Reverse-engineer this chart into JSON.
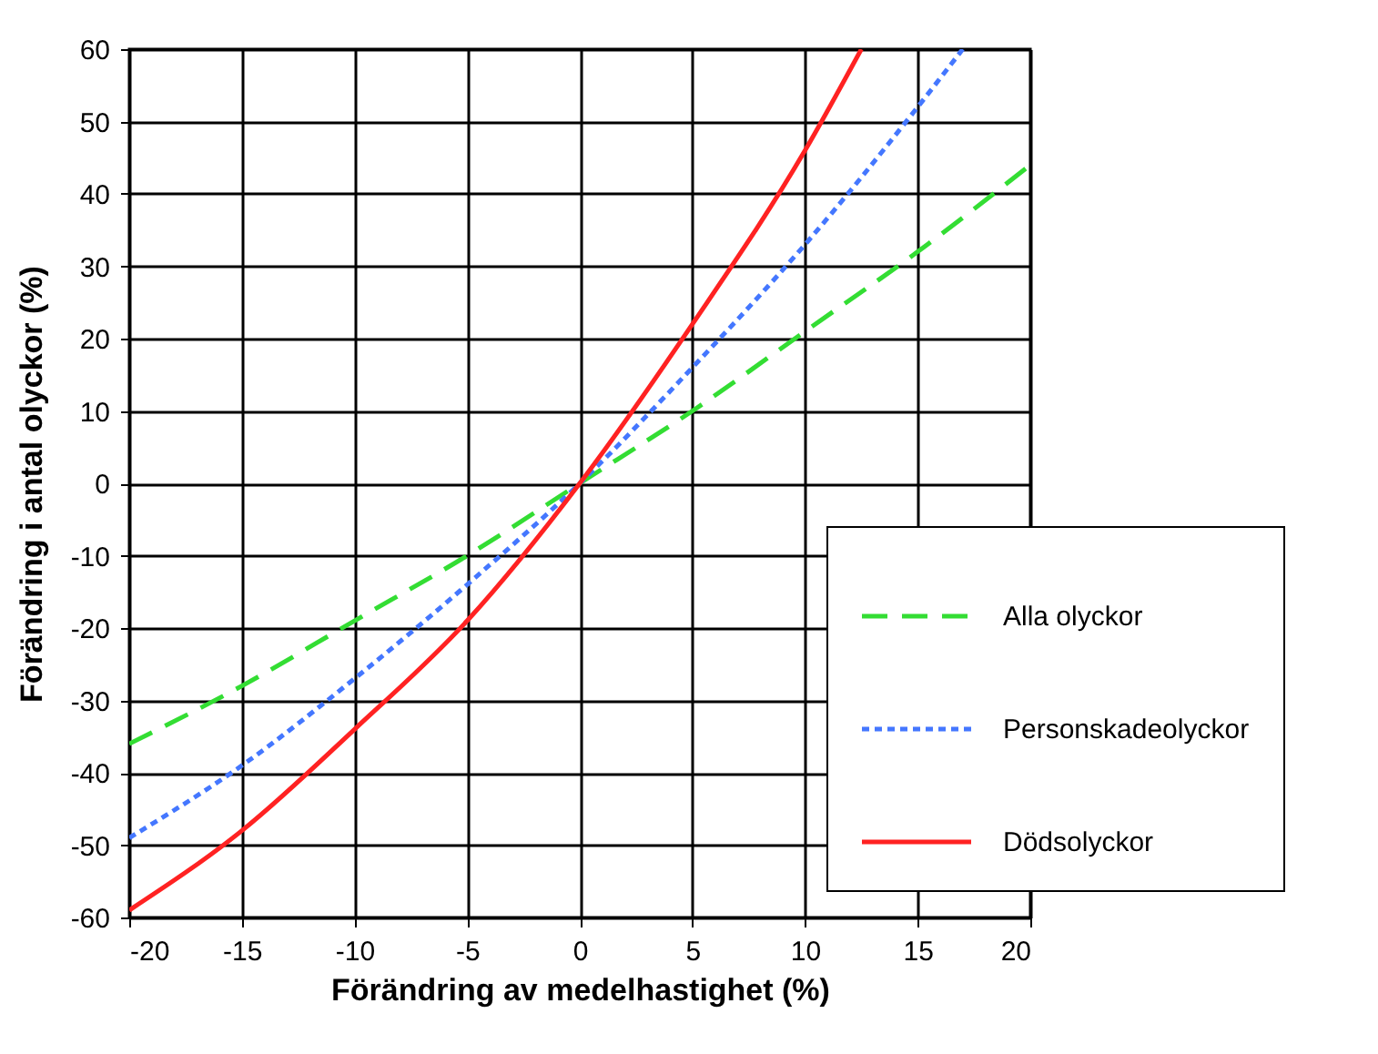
{
  "chart_data": {
    "type": "line",
    "xlabel": "Förändring av medelhastighet  (%)",
    "ylabel": "Förändring  i antal olyckor  (%)",
    "xlim": [
      -20,
      20
    ],
    "xticks": [
      -20,
      -15,
      -10,
      -5,
      0,
      5,
      10,
      15,
      20
    ],
    "ylim": [
      -60,
      60
    ],
    "yticks": [
      -60,
      -50,
      -40,
      -30,
      -20,
      -10,
      0,
      10,
      20,
      30,
      40,
      50,
      60
    ],
    "grid": true,
    "legend": "right",
    "marker": "none",
    "series": [
      {
        "name": "Alla olyckor",
        "color": "#33dd33",
        "line_style": "dashed",
        "x": [
          -20,
          -15,
          -10,
          -5,
          0,
          5,
          10,
          15,
          20
        ],
        "values": [
          -36,
          -28,
          -19,
          -10,
          0,
          10,
          21,
          32,
          44
        ]
      },
      {
        "name": "Personskadeolyckor",
        "color": "#4477ff",
        "line_style": "dotted",
        "x": [
          -20,
          -15,
          -10,
          -5,
          0,
          5,
          10,
          15,
          17
        ],
        "values": [
          -49,
          -39,
          -27,
          -14,
          0,
          16,
          33,
          52,
          60
        ]
      },
      {
        "name": "Dödsolyckor",
        "color": "#ff2222",
        "line_style": "solid",
        "x": [
          -20,
          -15,
          -10,
          -5,
          0,
          5,
          10,
          12.5
        ],
        "values": [
          -59,
          -48,
          -34,
          -19,
          0,
          22,
          46,
          60
        ]
      }
    ]
  }
}
